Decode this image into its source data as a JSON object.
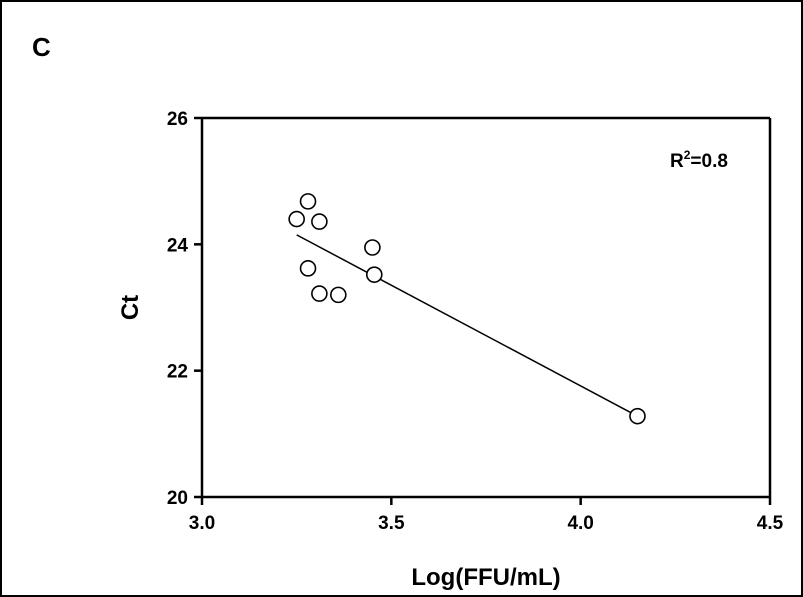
{
  "panel_label": "C",
  "chart_data": {
    "type": "scatter",
    "title": "",
    "xlabel": "Log(FFU/mL)",
    "ylabel": "Ct",
    "xlim": [
      3.0,
      4.5
    ],
    "ylim": [
      20,
      26
    ],
    "x_ticks": [
      "3.0",
      "3.5",
      "4.0",
      "4.5"
    ],
    "y_ticks": [
      "20",
      "22",
      "24",
      "26"
    ],
    "grid": false,
    "points": [
      {
        "x": 3.25,
        "y": 24.4
      },
      {
        "x": 3.28,
        "y": 24.68
      },
      {
        "x": 3.31,
        "y": 24.36
      },
      {
        "x": 3.28,
        "y": 23.62
      },
      {
        "x": 3.31,
        "y": 23.22
      },
      {
        "x": 3.36,
        "y": 23.2
      },
      {
        "x": 3.45,
        "y": 23.95
      },
      {
        "x": 3.455,
        "y": 23.52
      },
      {
        "x": 4.15,
        "y": 21.28
      }
    ],
    "fit_line": {
      "x": [
        3.25,
        4.15
      ],
      "y": [
        24.15,
        21.28
      ]
    },
    "annotation": {
      "text_base": "R",
      "superscript": "2",
      "text_suffix": "=0.8"
    },
    "colors": {
      "marker_stroke": "#000000",
      "marker_fill": "#ffffff",
      "line": "#000000"
    }
  }
}
